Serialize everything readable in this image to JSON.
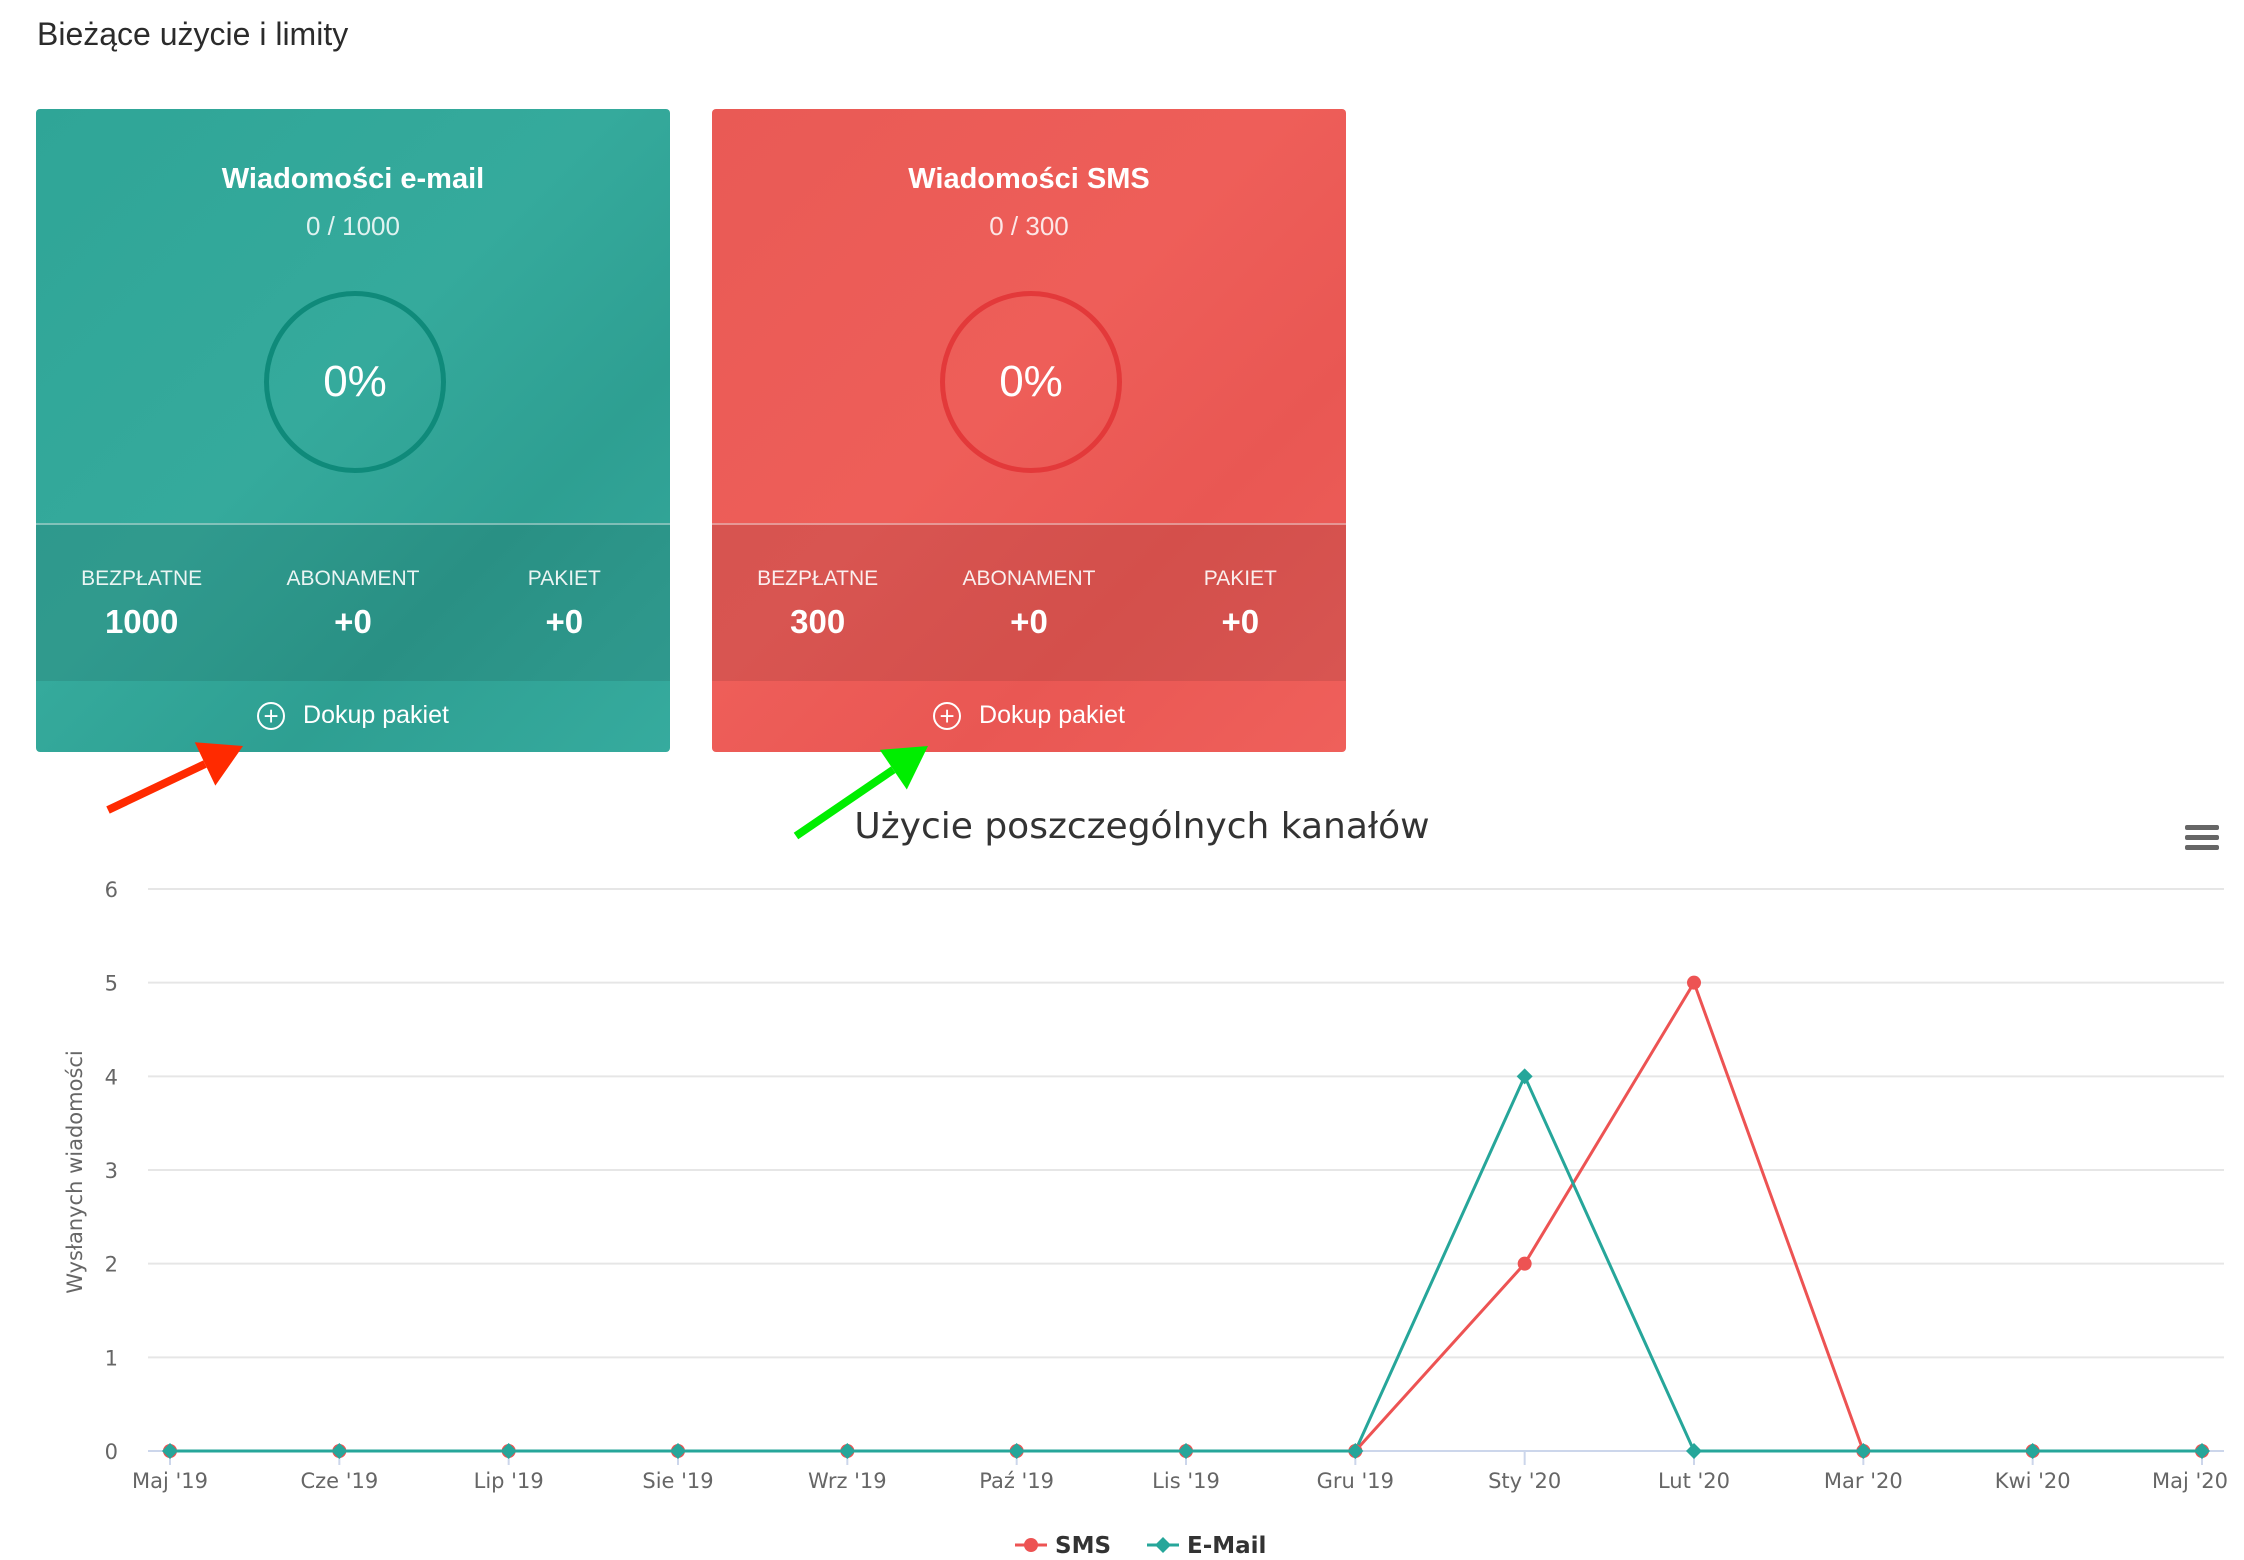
{
  "page_title": "Bieżące użycie i limity",
  "cards": [
    {
      "title": "Wiadomości e-mail",
      "usage": "0 / 1000",
      "percent": "0%",
      "stats": [
        {
          "label": "BEZPŁATNE",
          "value": "1000"
        },
        {
          "label": "ABONAMENT",
          "value": "+0"
        },
        {
          "label": "PAKIET",
          "value": "+0"
        }
      ],
      "action": "Dokup pakiet",
      "color": "#33a89a"
    },
    {
      "title": "Wiadomości SMS",
      "usage": "0 / 300",
      "percent": "0%",
      "stats": [
        {
          "label": "BEZPŁATNE",
          "value": "300"
        },
        {
          "label": "ABONAMENT",
          "value": "+0"
        },
        {
          "label": "PAKIET",
          "value": "+0"
        }
      ],
      "action": "Dokup pakiet",
      "color": "#ed5b57"
    }
  ],
  "annotations": {
    "arrow_1_color": "#ff2a00",
    "arrow_2_color": "#00ee00"
  },
  "chart_menu_icon": "hamburger-menu-icon",
  "chart_data": {
    "type": "line",
    "title": "Użycie poszczególnych kanałów",
    "ylabel": "Wysłanych wiadomości",
    "xlabel": "",
    "ylim": [
      0,
      6
    ],
    "yticks": [
      0,
      1,
      2,
      3,
      4,
      5,
      6
    ],
    "grid": true,
    "legend": "bottom-center",
    "categories": [
      "Maj '19",
      "Cze '19",
      "Lip '19",
      "Sie '19",
      "Wrz '19",
      "Paź '19",
      "Lis '19",
      "Gru '19",
      "Sty '20",
      "Lut '20",
      "Mar '20",
      "Kwi '20",
      "Maj '20"
    ],
    "series": [
      {
        "name": "SMS",
        "color": "#ed5353",
        "marker": "circle",
        "values": [
          0,
          0,
          0,
          0,
          0,
          0,
          0,
          0,
          2,
          5,
          0,
          0,
          0
        ]
      },
      {
        "name": "E-Mail",
        "color": "#26a69a",
        "marker": "diamond",
        "values": [
          0,
          0,
          0,
          0,
          0,
          0,
          0,
          0,
          4,
          0,
          0,
          0,
          0
        ]
      }
    ]
  }
}
